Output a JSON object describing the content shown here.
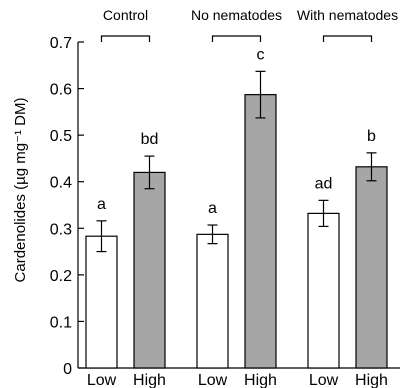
{
  "chart_data": {
    "type": "bar",
    "ylabel": "Cardenolides (µg mg⁻¹ DM)",
    "ylim": [
      0,
      0.7
    ],
    "yticks": [
      0,
      0.1,
      0.2,
      0.3,
      0.4,
      0.5,
      0.6,
      0.7
    ],
    "ytick_labels": [
      "0",
      "0.1",
      "0.2",
      "0.3",
      "0.4",
      "0.5",
      "0.6",
      "0.7"
    ],
    "groups": [
      "Control",
      "No nematodes",
      "With nematodes"
    ],
    "categories": [
      "Low",
      "High",
      "Low",
      "High",
      "Low",
      "High"
    ],
    "values": [
      0.283,
      0.42,
      0.287,
      0.587,
      0.332,
      0.432
    ],
    "errors": [
      0.033,
      0.035,
      0.02,
      0.05,
      0.028,
      0.03
    ],
    "significance": [
      "a",
      "bd",
      "a",
      "c",
      "ad",
      "b"
    ],
    "colors": {
      "low": "#ffffff",
      "high": "#a6a6a6",
      "stroke": "#000000"
    },
    "grid": false,
    "legend": "none"
  }
}
